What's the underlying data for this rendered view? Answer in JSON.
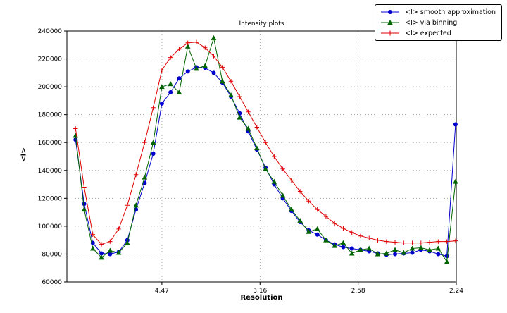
{
  "figure": {
    "title": "Intensity plots",
    "xlabel": "Resolution",
    "ylabel": "<I>",
    "background": "#ffffff"
  },
  "legend": {
    "position": "upper-right",
    "items": [
      {
        "label": "<I> smooth approximation",
        "color": "#0000cc",
        "marker": "circle"
      },
      {
        "label": "<I> via binning",
        "color": "#006400",
        "marker": "triangle-up"
      },
      {
        "label": "<I> expected",
        "color": "#e00000",
        "marker": "plus"
      }
    ]
  },
  "chart_data": {
    "type": "line",
    "title": "Intensity plots",
    "xlabel": "Resolution",
    "ylabel": "<I>",
    "grid": "dotted",
    "legend_position": "upper right",
    "x_axis": {
      "min": 0.0016,
      "max": 0.2,
      "unit": "1/d^2 (labels shown in d, Angstrom)",
      "ticks": [
        {
          "label": "4.47",
          "value": 0.05
        },
        {
          "label": "3.16",
          "value": 0.1
        },
        {
          "label": "2.58",
          "value": 0.15
        },
        {
          "label": "2.24",
          "value": 0.2
        }
      ]
    },
    "y_axis": {
      "min": 60000,
      "max": 240000,
      "tick_step": 20000,
      "ticks": [
        {
          "label": "60000",
          "value": 60000
        },
        {
          "label": "80000",
          "value": 80000
        },
        {
          "label": "100000",
          "value": 100000
        },
        {
          "label": "120000",
          "value": 120000
        },
        {
          "label": "140000",
          "value": 140000
        },
        {
          "label": "160000",
          "value": 160000
        },
        {
          "label": "180000",
          "value": 180000
        },
        {
          "label": "200000",
          "value": 200000
        },
        {
          "label": "220000",
          "value": 220000
        },
        {
          "label": "240000",
          "value": 240000
        }
      ]
    },
    "x": [
      0.006,
      0.0104,
      0.0148,
      0.0192,
      0.0236,
      0.028,
      0.0324,
      0.0368,
      0.0412,
      0.0456,
      0.05,
      0.0544,
      0.0588,
      0.0632,
      0.0676,
      0.072,
      0.0764,
      0.0808,
      0.0852,
      0.0896,
      0.094,
      0.0984,
      0.1028,
      0.1072,
      0.1116,
      0.116,
      0.1204,
      0.1248,
      0.1292,
      0.1336,
      0.138,
      0.1424,
      0.1468,
      0.1512,
      0.1556,
      0.16,
      0.1644,
      0.1688,
      0.1732,
      0.1776,
      0.182,
      0.1864,
      0.1908,
      0.1952,
      0.1996
    ],
    "series": [
      {
        "name": "<I> smooth approximation",
        "color": "#0000cc",
        "marker": "circle",
        "values": [
          162000,
          116000,
          88000,
          80500,
          80000,
          81500,
          90000,
          112000,
          131000,
          152000,
          188000,
          196000,
          206000,
          211000,
          214000,
          213500,
          210000,
          203000,
          193000,
          181000,
          168000,
          155000,
          142000,
          130000,
          120000,
          111000,
          103000,
          97000,
          94000,
          90000,
          87000,
          85000,
          84000,
          83000,
          82000,
          80500,
          79500,
          80000,
          80500,
          81000,
          83000,
          82000,
          80000,
          78500,
          173000
        ]
      },
      {
        "name": "<I> via binning",
        "color": "#006400",
        "marker": "triangle-up",
        "values": [
          165000,
          112000,
          84000,
          77500,
          82500,
          81000,
          88000,
          115000,
          135000,
          160000,
          200000,
          202000,
          196000,
          229000,
          213000,
          215000,
          235000,
          204000,
          194000,
          178000,
          170000,
          156000,
          141000,
          132000,
          122000,
          112000,
          104000,
          96000,
          98000,
          90000,
          86000,
          88000,
          80500,
          83000,
          84000,
          80000,
          80500,
          83000,
          81000,
          84000,
          84500,
          83000,
          84000,
          74500,
          132000
        ]
      },
      {
        "name": "<I> expected",
        "color": "#e00000",
        "marker": "plus",
        "values": [
          170000,
          128000,
          94000,
          87000,
          89000,
          98000,
          115000,
          137000,
          160000,
          185000,
          212000,
          221000,
          227000,
          231500,
          232000,
          228000,
          222000,
          214000,
          204000,
          193000,
          182000,
          171000,
          160000,
          150000,
          141000,
          133000,
          125000,
          118000,
          112000,
          107000,
          102000,
          98500,
          95500,
          93000,
          91500,
          90000,
          89000,
          88500,
          88000,
          88000,
          88000,
          88500,
          89000,
          89000,
          89500
        ]
      }
    ]
  }
}
